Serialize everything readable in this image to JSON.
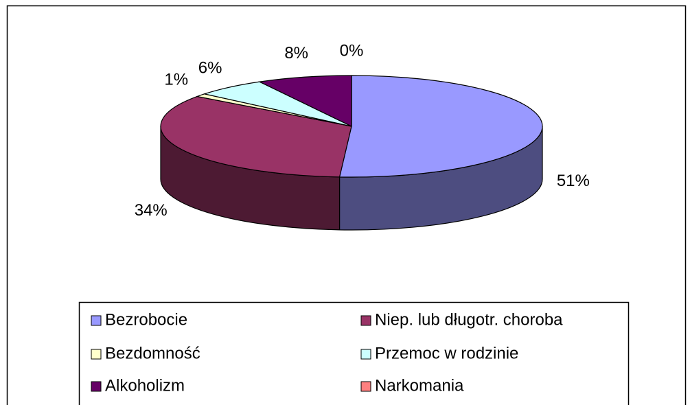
{
  "chart_data": {
    "type": "pie3d",
    "series": [
      {
        "categories": [
          "Bezrobocie",
          "Niep. lub długotr. choroba",
          "Bezdomność",
          "Przemoc w rodzinie",
          "Alkoholizm",
          "Narkomania"
        ],
        "values": [
          51,
          34,
          1,
          6,
          8,
          0
        ],
        "value_labels": [
          "51%",
          "34%",
          "1%",
          "6%",
          "8%",
          "0%"
        ],
        "colors": [
          "#9999ff",
          "#993366",
          "#ffffcc",
          "#ccffff",
          "#660066",
          "#ff8080"
        ]
      }
    ],
    "legend": "bottom"
  }
}
